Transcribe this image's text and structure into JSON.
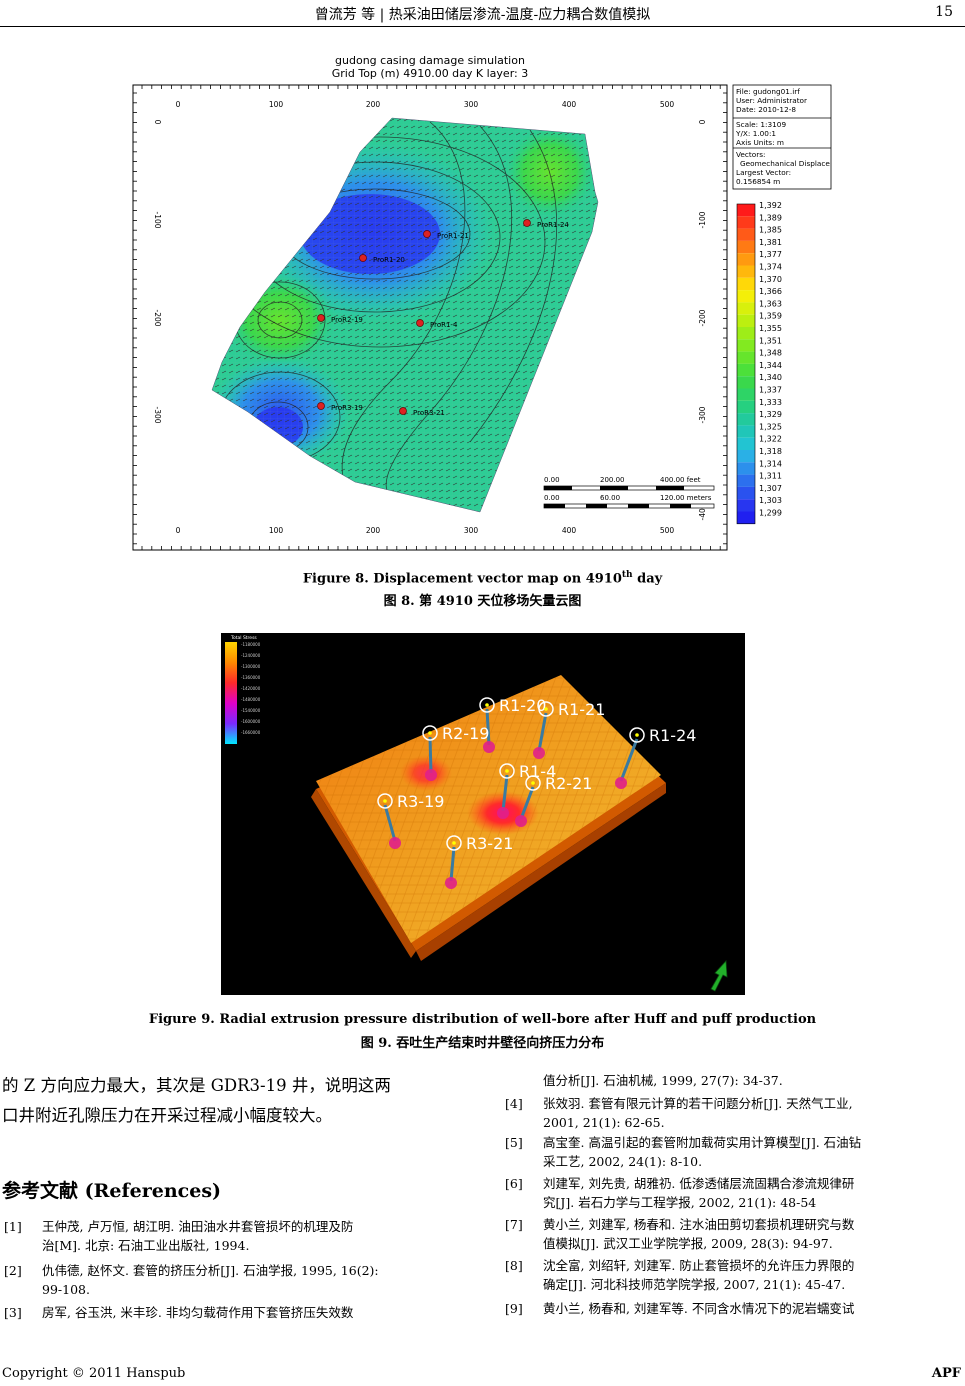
{
  "header": {
    "running_title": "曾流芳 等 | 热采油田储层渗流-温度-应力耦合数值模拟",
    "page_number": "15"
  },
  "figure8": {
    "plot_title_1": "gudong casing damage simulation",
    "plot_title_2": "Grid Top (m)  4910.00 day     K layer: 3",
    "info_box": {
      "file": "File: gudong01.irf",
      "user": "User:  Administrator",
      "date": "Date:  2010-12-8",
      "scale": "Scale: 1:3109",
      "yx": "Y/X: 1.00:1",
      "axis_units": "Axis Units: m",
      "vectors": "Vectors:",
      "vector_type": "Geomechanical Displace",
      "largest": "Largest Vector:",
      "largest_val": "0.156854 m"
    },
    "x_ticks": [
      "0",
      "100",
      "200",
      "300",
      "400",
      "500"
    ],
    "y_ticks": [
      "0",
      "-100",
      "-200",
      "-300",
      "-400"
    ],
    "colorbar": [
      "1,392",
      "1,389",
      "1,385",
      "1,381",
      "1,377",
      "1,374",
      "1,370",
      "1,366",
      "1,363",
      "1,359",
      "1,355",
      "1,351",
      "1,348",
      "1,344",
      "1,340",
      "1,337",
      "1,333",
      "1,329",
      "1,325",
      "1,322",
      "1,318",
      "1,314",
      "1,311",
      "1,307",
      "1,303",
      "1,299"
    ],
    "colorbar_colors": [
      "#ff1a1a",
      "#ff3a1a",
      "#ff5a18",
      "#ff7a14",
      "#ff9a10",
      "#ffb80c",
      "#ffd808",
      "#f4ef08",
      "#d8f00c",
      "#bcef10",
      "#9eed18",
      "#82ea20",
      "#66e52c",
      "#4ce03a",
      "#3ad84c",
      "#2ed466",
      "#26d080",
      "#22ca9c",
      "#20c6b8",
      "#22c4d2",
      "#2ab0e6",
      "#2c90ec",
      "#2c70ee",
      "#2a52ef",
      "#2836f0",
      "#2020f0"
    ],
    "wells": [
      {
        "name": "ProR1-21"
      },
      {
        "name": "ProR1-20"
      },
      {
        "name": "ProR1-24"
      },
      {
        "name": "ProR2-19"
      },
      {
        "name": "ProR1-4"
      },
      {
        "name": "ProR3-19"
      },
      {
        "name": "ProR3-21"
      }
    ],
    "scalebar": {
      "feet_labels": [
        "0.00",
        "200.00",
        "400.00 feet"
      ],
      "meter_labels": [
        "0.00",
        "60.00",
        "120.00 meters"
      ]
    },
    "caption_en_pre": "Figure 8. Displacement vector map on 4910",
    "caption_en_sup": "th",
    "caption_en_post": " day",
    "caption_cn": "图 8.  第 4910 天位移场矢量云图"
  },
  "figure9": {
    "legend_title": "Total Stress",
    "legend_values": [
      "-1180000",
      "-1240000",
      "-1300000",
      "-1360000",
      "-1420000",
      "-1480000",
      "-1540000",
      "-1600000",
      "-1660000"
    ],
    "wells": [
      "R1-20",
      "R1-21",
      "R2-19",
      "R1-24",
      "R1-4",
      "R2-21",
      "R3-19",
      "R3-21"
    ],
    "caption_en": "Figure 9. Radial extrusion pressure distribution of well-bore after Huff and puff production",
    "caption_cn": "图 9.  吞吐生产结束时井壁径向挤压力分布"
  },
  "body": {
    "line1": "的 Z 方向应力最大，其次是 GDR3-19 井，说明这两",
    "line2": "口井附近孔隙压力在开采过程减小幅度较大。"
  },
  "references": {
    "heading": "参考文献  (References)",
    "left": [
      {
        "num": "[1]",
        "l1": "王仲茂,  卢万恒,  胡江明.  油田油水井套管损坏的机理及防",
        "l2": "治[M].  北京:  石油工业出版社, 1994."
      },
      {
        "num": "[2]",
        "l1": "仇伟德,  赵怀文.  套管的挤压分析[J].  石油学报,  1995,  16(2):",
        "l2": "99-108."
      },
      {
        "num": "[3]",
        "l1": "房军,  谷玉洪,  米丰珍.  非均匀载荷作用下套管挤压失效数",
        "l2": ""
      }
    ],
    "right": [
      {
        "num": "",
        "l1": "值分析[J].  石油机械, 1999, 27(7): 34-37.",
        "l2": ""
      },
      {
        "num": "[4]",
        "l1": "张效羽.  套管有限元计算的若干问题分析[J].  天然气工业,",
        "l2": "2001, 21(1): 62-65."
      },
      {
        "num": "[5]",
        "l1": "高宝奎.  高温引起的套管附加载荷实用计算模型[J].  石油钻",
        "l2": "采工艺, 2002, 24(1): 8-10."
      },
      {
        "num": "[6]",
        "l1": "刘建军,  刘先贵,  胡雅礽.  低渗透储层流固耦合渗流规律研",
        "l2": "究[J].  岩石力学与工程学报, 2002, 21(1): 48-54"
      },
      {
        "num": "[7]",
        "l1": "黄小兰,  刘建军,  杨春和.  注水油田剪切套损机理研究与数",
        "l2": "值模拟[J].  武汉工业学院学报, 2009, 28(3): 94-97."
      },
      {
        "num": "[8]",
        "l1": "沈全富,  刘绍轩,  刘建军.  防止套管损坏的允许压力界限的",
        "l2": "确定[J].  河北科技师范学院学报, 2007, 21(1): 45-47."
      },
      {
        "num": "[9]",
        "l1": "黄小兰,  杨春和,  刘建军等.  不同含水情况下的泥岩蠕变试",
        "l2": ""
      }
    ]
  },
  "footer": {
    "copyright": "Copyright  ©  2011  Hanspub",
    "journal": "APF"
  }
}
